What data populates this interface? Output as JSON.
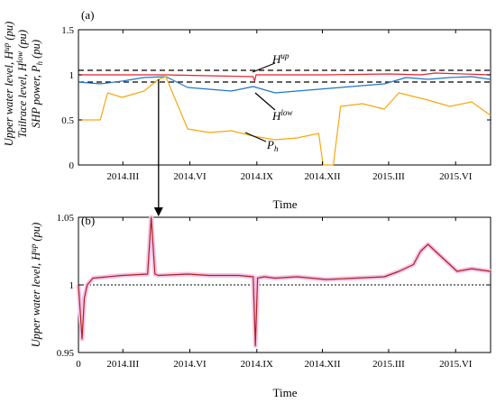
{
  "chart_data": [
    {
      "panel": "(a)",
      "type": "line",
      "ylabel_lines": [
        "Upper water level, H^up (pu)",
        "Tailrace level, H^low (pu)",
        "SHP power, P_h (pu)"
      ],
      "xlabel": "Time",
      "x_ticks": [
        "2014.III",
        "2014.VI",
        "2014.IX",
        "2014.XII",
        "2015.III",
        "2015.VI"
      ],
      "x_tick_days": [
        61,
        153,
        245,
        335,
        426,
        518
      ],
      "xlim": [
        0,
        566
      ],
      "ylim": [
        0,
        1.5
      ],
      "y_ticks": [
        "0",
        "0.5",
        "1",
        "1.5"
      ],
      "y_tick_values": [
        0,
        0.5,
        1,
        1.5
      ],
      "reference_lines": [
        1.05,
        0.92
      ],
      "annotations": [
        {
          "text": "H",
          "sup": "up",
          "series": "H_up"
        },
        {
          "text": "H",
          "sup": "low",
          "series": "H_low"
        },
        {
          "text": "P",
          "sub": "h",
          "series": "P_h"
        }
      ],
      "series": [
        {
          "key": "H_up",
          "color": "#e8222c",
          "x": [
            0,
            60,
            61,
            120,
            240,
            242,
            244,
            340,
            426,
            470,
            490,
            566
          ],
          "y": [
            1.0,
            1.0,
            1.0,
            1.0,
            0.98,
            0.93,
            1.0,
            1.0,
            1.01,
            1.0,
            1.02,
            1.0
          ]
        },
        {
          "key": "H_low",
          "color": "#1f77c4",
          "x": [
            0,
            30,
            60,
            90,
            120,
            150,
            180,
            210,
            240,
            270,
            300,
            330,
            360,
            390,
            420,
            450,
            480,
            510,
            540,
            566
          ],
          "y": [
            0.92,
            0.9,
            0.93,
            0.97,
            0.98,
            0.86,
            0.84,
            0.82,
            0.87,
            0.8,
            0.82,
            0.84,
            0.86,
            0.88,
            0.9,
            0.97,
            0.95,
            0.97,
            0.98,
            0.95
          ]
        },
        {
          "key": "P_h",
          "color": "#f5a80f",
          "x": [
            0,
            30,
            40,
            60,
            90,
            110,
            120,
            150,
            180,
            210,
            240,
            270,
            300,
            330,
            336,
            350,
            360,
            390,
            420,
            440,
            480,
            510,
            540,
            566
          ],
          "y": [
            0.5,
            0.5,
            0.8,
            0.75,
            0.82,
            0.95,
            0.98,
            0.4,
            0.36,
            0.38,
            0.32,
            0.28,
            0.3,
            0.35,
            0.0,
            0.0,
            0.65,
            0.68,
            0.62,
            0.8,
            0.72,
            0.65,
            0.7,
            0.55
          ]
        }
      ]
    },
    {
      "panel": "(b)",
      "type": "line",
      "ylabel": "Upper water level, H^up (pu)",
      "xlabel": "Time",
      "x_ticks": [
        "0",
        "2014.III",
        "2014.VI",
        "2014.IX",
        "2014.XII",
        "2015.III",
        "2015.VI"
      ],
      "x_tick_days": [
        0,
        61,
        153,
        245,
        335,
        426,
        518
      ],
      "xlim": [
        0,
        566
      ],
      "ylim": [
        0.95,
        1.05
      ],
      "y_ticks": [
        "0.95",
        "1",
        "1.05"
      ],
      "y_tick_values": [
        0.95,
        1.0,
        1.05
      ],
      "reference_lines": [
        1.0
      ],
      "series": [
        {
          "key": "H_up",
          "color": "#b02020",
          "x": [
            0,
            5,
            8,
            12,
            20,
            40,
            60,
            95,
            100,
            105,
            110,
            150,
            180,
            220,
            240,
            243,
            246,
            255,
            270,
            300,
            340,
            380,
            420,
            440,
            460,
            470,
            480,
            500,
            520,
            540,
            566
          ],
          "y": [
            1.0,
            0.96,
            0.99,
            1.0,
            1.005,
            1.006,
            1.007,
            1.008,
            1.05,
            1.008,
            1.007,
            1.008,
            1.007,
            1.007,
            1.006,
            0.955,
            1.005,
            1.006,
            1.005,
            1.006,
            1.004,
            1.005,
            1.006,
            1.01,
            1.015,
            1.025,
            1.03,
            1.02,
            1.01,
            1.012,
            1.01
          ]
        }
      ]
    }
  ],
  "arrow": {
    "from_panel": "(a)",
    "to_panel": "(b)",
    "x_day": 110
  }
}
